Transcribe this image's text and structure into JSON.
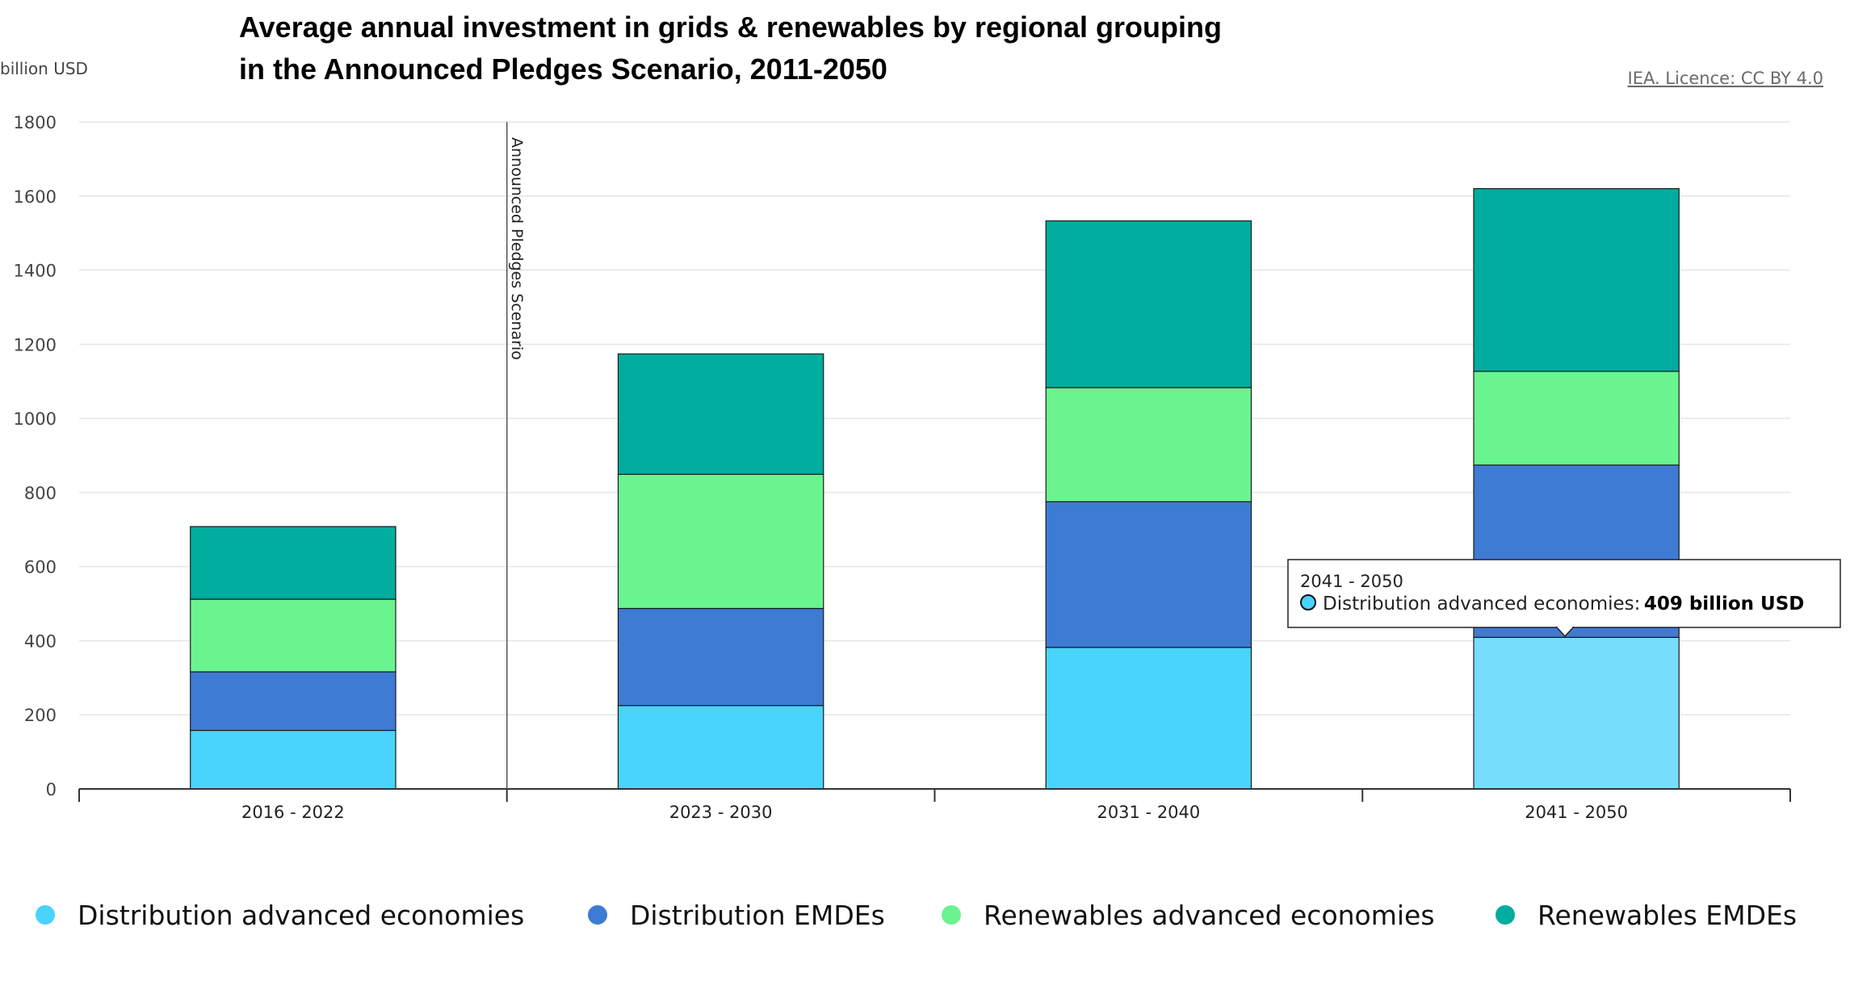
{
  "header": {
    "title_line1": "Average annual investment in grids & renewables by regional grouping",
    "title_line2": "in the Announced Pledges Scenario, 2011-2050",
    "unit": "billion USD",
    "licence": "IEA. Licence: CC BY 4.0"
  },
  "annotation": {
    "label": "Announced Pledges Scenario"
  },
  "tooltip": {
    "title": "2041 - 2050",
    "series": "Distribution advanced economies",
    "separator": ":",
    "value": "409 billion USD"
  },
  "colors": {
    "distribution_advanced": "#48d4fc",
    "distribution_advanced_hover": "#78dcfc",
    "distribution_emdes": "#3d7bd4",
    "renewables_advanced": "#6af490",
    "renewables_emdes": "#00ad9f",
    "grid": "#e6e6e6",
    "axis": "#333333"
  },
  "chart_data": {
    "type": "bar",
    "stacked": true,
    "categories": [
      "2016 - 2022",
      "2023 - 2030",
      "2031 - 2040",
      "2041 - 2050"
    ],
    "series": [
      {
        "name": "Distribution advanced economies",
        "values": [
          158,
          225,
          382,
          409
        ]
      },
      {
        "name": "Distribution EMDEs",
        "values": [
          158,
          262,
          393,
          465
        ]
      },
      {
        "name": "Renewables advanced economies",
        "values": [
          196,
          362,
          308,
          253
        ]
      },
      {
        "name": "Renewables EMDEs",
        "values": [
          196,
          325,
          450,
          493
        ]
      }
    ],
    "ylim": [
      0,
      1800
    ],
    "yticks": [
      0,
      200,
      400,
      600,
      800,
      1000,
      1200,
      1400,
      1600,
      1800
    ],
    "ylabel": "billion USD",
    "grid": true,
    "legend_position": "bottom"
  }
}
